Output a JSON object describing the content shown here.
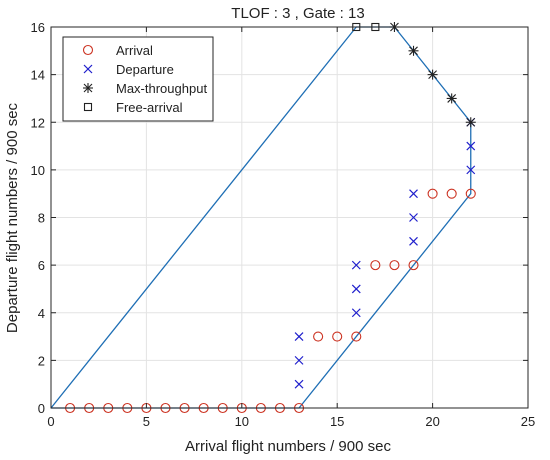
{
  "chart_data": {
    "type": "scatter",
    "title": "TLOF : 3 , Gate : 13",
    "xlabel": "Arrival flight numbers / 900 sec",
    "ylabel": "Departure flight numbers / 900 sec",
    "xlim": [
      0,
      25
    ],
    "ylim": [
      0,
      16
    ],
    "xticks": [
      0,
      5,
      10,
      15,
      20,
      25
    ],
    "yticks": [
      0,
      2,
      4,
      6,
      8,
      10,
      12,
      14,
      16
    ],
    "grid": true,
    "legend_position": "top-left",
    "series": [
      {
        "name": "Arrival",
        "marker": "circle",
        "color": "#cc3322",
        "points": [
          [
            1,
            0
          ],
          [
            2,
            0
          ],
          [
            3,
            0
          ],
          [
            4,
            0
          ],
          [
            5,
            0
          ],
          [
            6,
            0
          ],
          [
            7,
            0
          ],
          [
            8,
            0
          ],
          [
            9,
            0
          ],
          [
            10,
            0
          ],
          [
            11,
            0
          ],
          [
            12,
            0
          ],
          [
            13,
            0
          ],
          [
            14,
            3
          ],
          [
            15,
            3
          ],
          [
            16,
            3
          ],
          [
            17,
            6
          ],
          [
            18,
            6
          ],
          [
            19,
            6
          ],
          [
            20,
            9
          ],
          [
            21,
            9
          ],
          [
            22,
            9
          ]
        ]
      },
      {
        "name": "Departure",
        "marker": "x",
        "color": "#1f1fcc",
        "points": [
          [
            13,
            1
          ],
          [
            13,
            2
          ],
          [
            13,
            3
          ],
          [
            16,
            4
          ],
          [
            16,
            5
          ],
          [
            16,
            6
          ],
          [
            19,
            7
          ],
          [
            19,
            8
          ],
          [
            19,
            9
          ],
          [
            22,
            10
          ],
          [
            22,
            11
          ],
          [
            22,
            12
          ]
        ]
      },
      {
        "name": "Max-throughput",
        "marker": "asterisk",
        "color": "#222222",
        "points": [
          [
            18,
            16
          ],
          [
            19,
            15
          ],
          [
            20,
            14
          ],
          [
            21,
            13
          ],
          [
            22,
            12
          ]
        ]
      },
      {
        "name": "Free-arrival",
        "marker": "square",
        "color": "#222222",
        "points": [
          [
            16,
            16
          ],
          [
            17,
            16
          ]
        ]
      }
    ],
    "envelope": {
      "color": "#1f6fb5",
      "points": [
        [
          0,
          0
        ],
        [
          16,
          16
        ],
        [
          18,
          16
        ],
        [
          22,
          12
        ],
        [
          22,
          9
        ],
        [
          13,
          0
        ],
        [
          0,
          0
        ]
      ]
    }
  }
}
